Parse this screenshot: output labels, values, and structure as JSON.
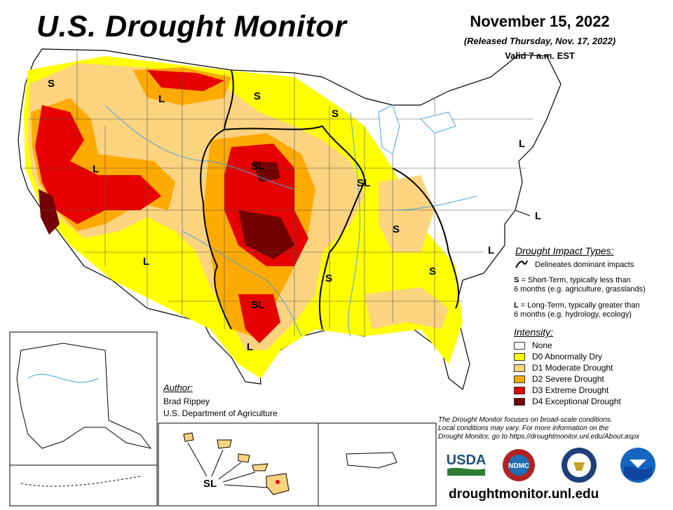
{
  "header": {
    "title": "U.S. Drought Monitor",
    "date": "November 15, 2022",
    "released": "(Released Thursday, Nov. 17, 2022)",
    "valid": "Valid 7 a.m. EST"
  },
  "impact_types": {
    "title": "Drought Impact Types:",
    "line_desc": "Delineates dominant impacts",
    "s_code": "S",
    "s_desc_1": " = Short-Term, typically less than",
    "s_desc_2": "6 months (e.g. agriculture, grasslands)",
    "l_code": "L",
    "l_desc_1": " = Long-Term, typically greater than",
    "l_desc_2": "6 months (e.g. hydrology, ecology)"
  },
  "intensity": {
    "title": "Intensity:",
    "levels": [
      {
        "label": "None",
        "color": "#ffffff"
      },
      {
        "label": "D0 Abnormally Dry",
        "color": "#ffff00"
      },
      {
        "label": "D1 Moderate Drought",
        "color": "#fcd37f"
      },
      {
        "label": "D2 Severe Drought",
        "color": "#ffaa00"
      },
      {
        "label": "D3 Extreme Drought",
        "color": "#e60000"
      },
      {
        "label": "D4 Exceptional Drought",
        "color": "#730000"
      }
    ]
  },
  "author": {
    "heading": "Author:",
    "name": "Brad Rippey",
    "org": "U.S. Department of Agriculture"
  },
  "note": {
    "line1": "The Drought Monitor focuses on broad-scale conditions.",
    "line2": "Local conditions may vary. For more information on the",
    "line3": "Drought Monitor, go to https://droughtmonitor.unl.edu/About.aspx"
  },
  "logos": {
    "usda": "USDA",
    "ndmc": "NDMC"
  },
  "url": "droughtmonitor.unl.edu",
  "map_labels": {
    "s": "S",
    "l": "L",
    "sl": "SL"
  }
}
